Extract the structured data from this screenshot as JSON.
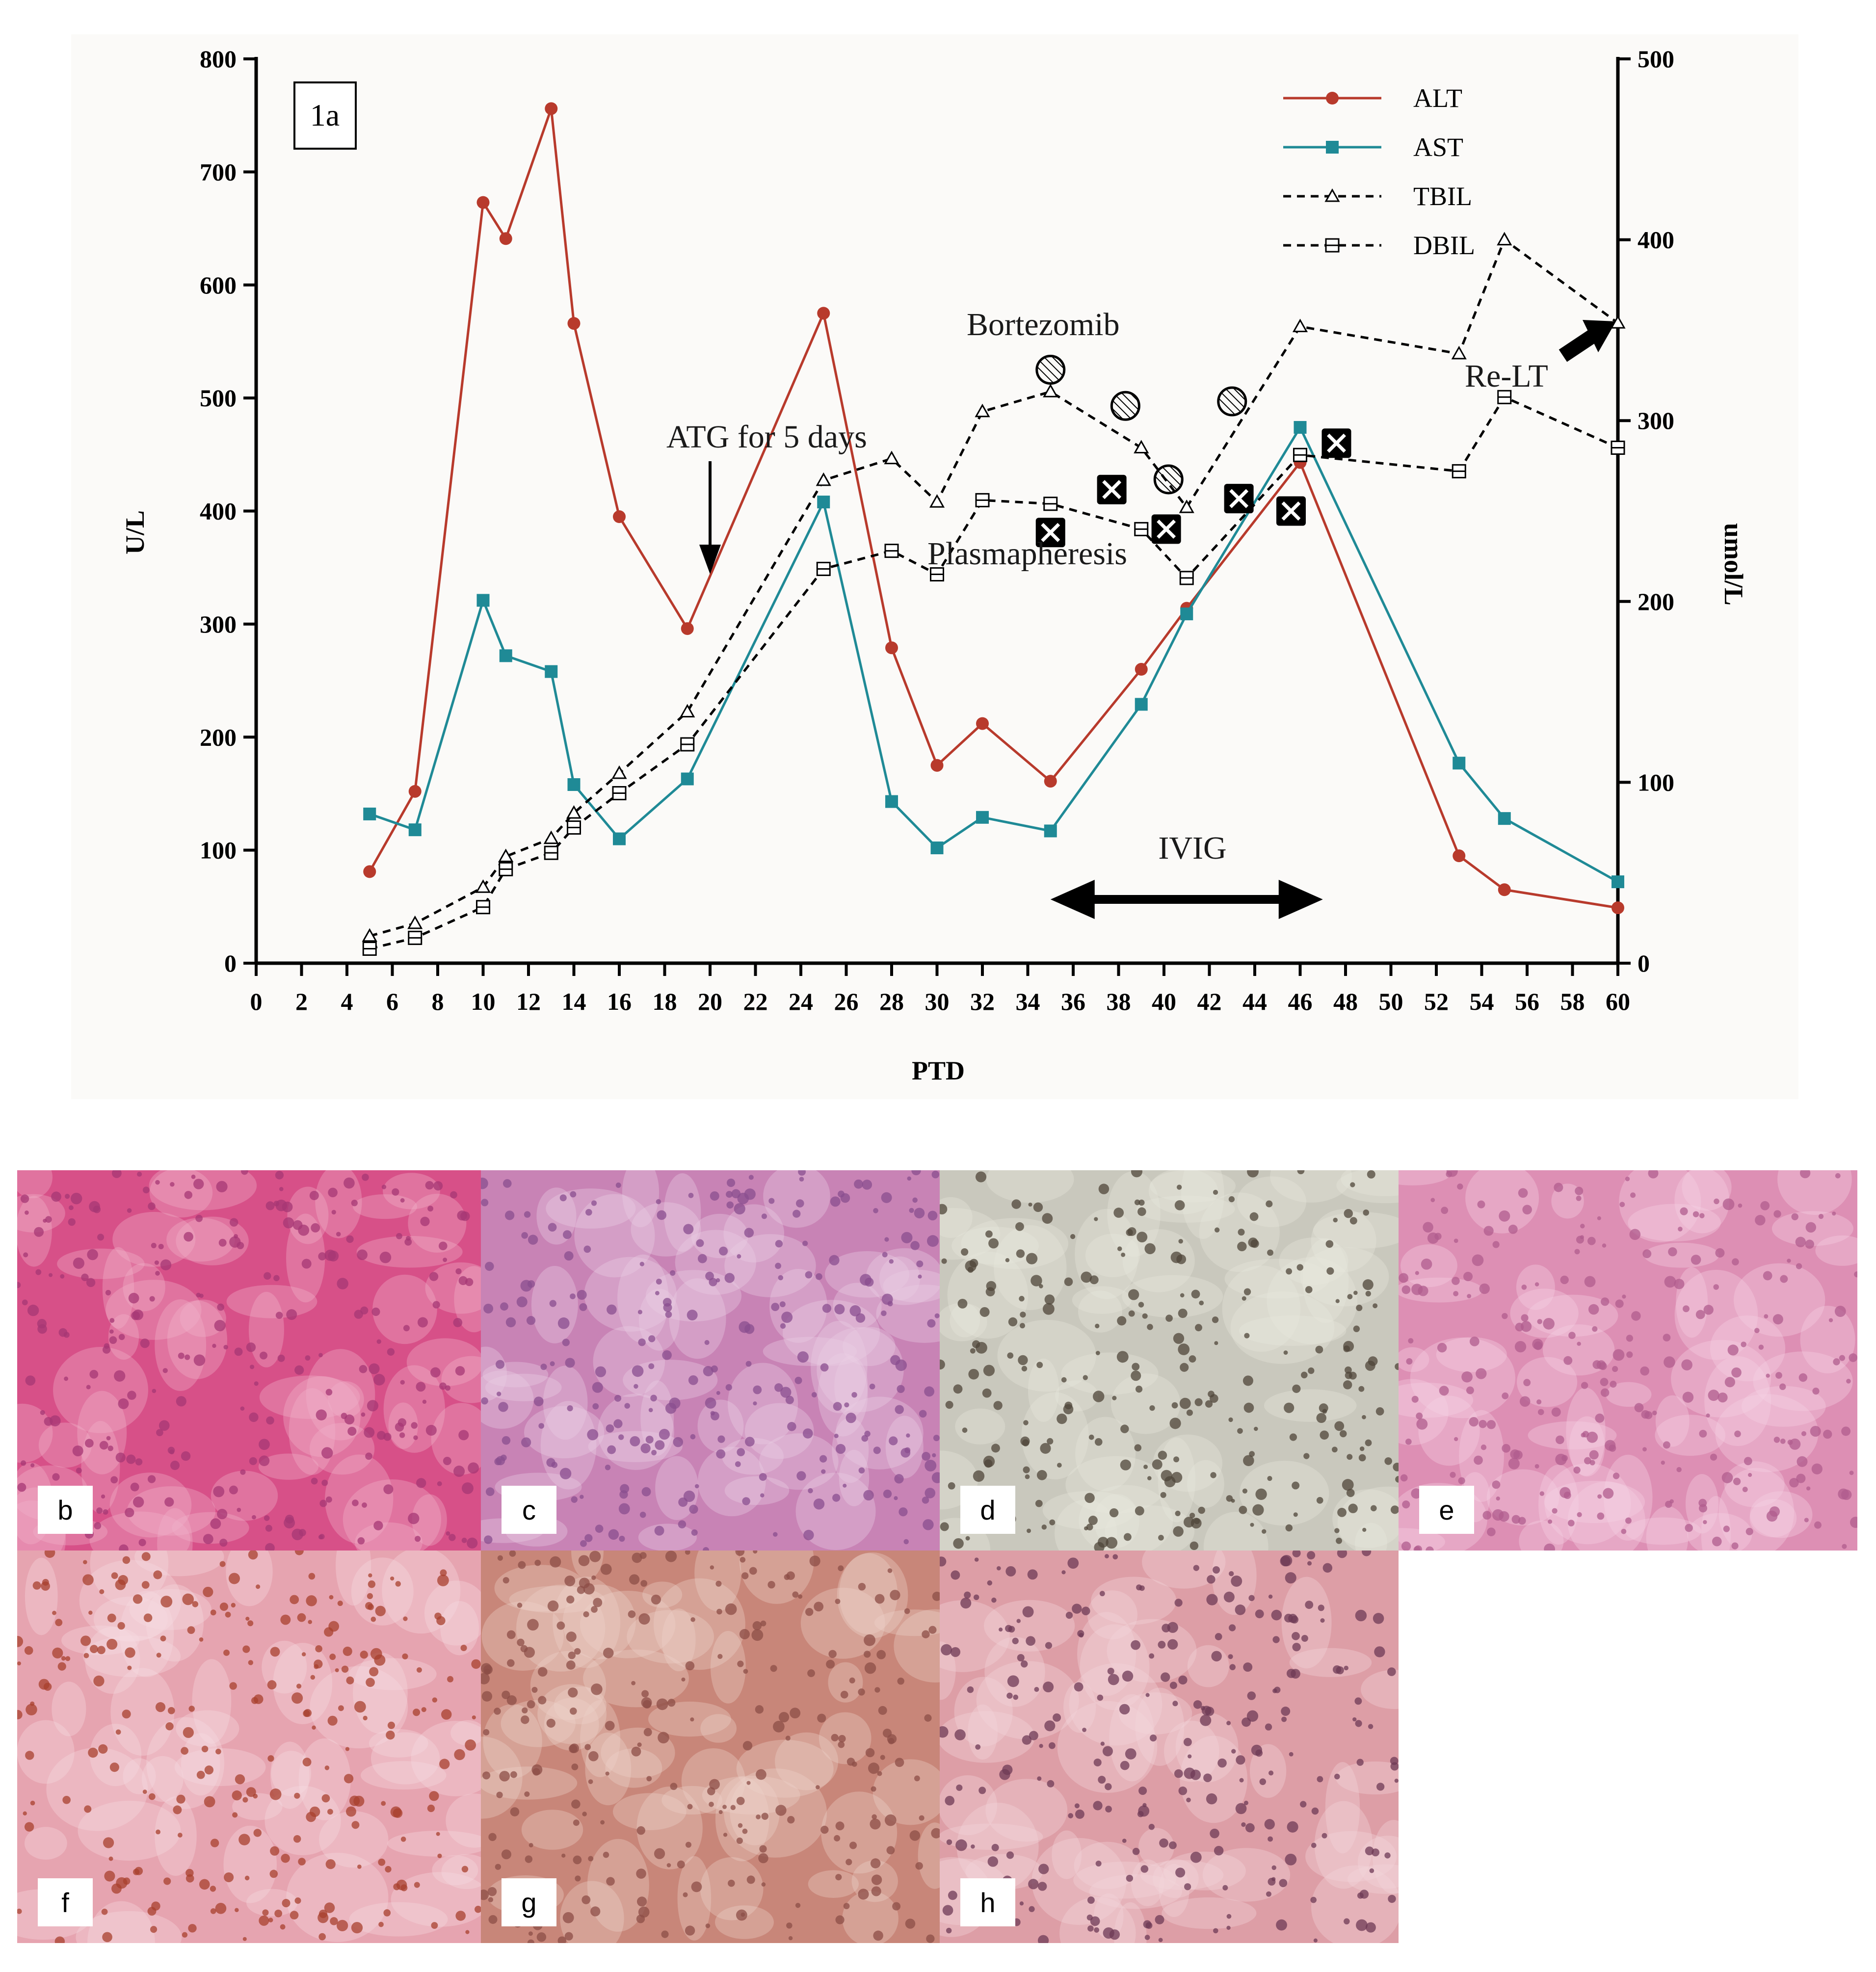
{
  "panel_label": "1a",
  "chart_data": {
    "type": "line",
    "xlabel": "PTD",
    "ylabel_left": "U/L",
    "ylabel_right": "umol/L",
    "xlim": [
      0,
      60
    ],
    "xticks": [
      0,
      2,
      4,
      6,
      8,
      10,
      12,
      14,
      16,
      18,
      20,
      22,
      24,
      26,
      28,
      30,
      32,
      34,
      36,
      38,
      40,
      42,
      44,
      46,
      48,
      50,
      52,
      54,
      56,
      58,
      60
    ],
    "ylim_left": [
      0,
      800
    ],
    "yticks_left": [
      0,
      100,
      200,
      300,
      400,
      500,
      600,
      700,
      800
    ],
    "ylim_right": [
      0,
      500
    ],
    "yticks_right": [
      0,
      100,
      200,
      300,
      400,
      500
    ],
    "legend_position": "top-right",
    "series": [
      {
        "name": "ALT",
        "axis": "left",
        "color": "#b83a2c",
        "marker": "circle",
        "style": "solid",
        "x": [
          5,
          7,
          10,
          11,
          13,
          14,
          16,
          19,
          25,
          28,
          30,
          32,
          35,
          39,
          41,
          46,
          53,
          55,
          60
        ],
        "y": [
          81,
          152,
          673,
          641,
          756,
          566,
          395,
          296,
          575,
          279,
          175,
          212,
          161,
          260,
          314,
          443,
          95,
          65,
          49
        ]
      },
      {
        "name": "AST",
        "axis": "left",
        "color": "#1f8a96",
        "marker": "square",
        "style": "solid",
        "x": [
          5,
          7,
          10,
          11,
          13,
          14,
          16,
          19,
          25,
          28,
          30,
          32,
          35,
          39,
          41,
          46,
          53,
          55,
          60
        ],
        "y": [
          132,
          118,
          321,
          272,
          258,
          158,
          110,
          163,
          408,
          143,
          102,
          129,
          117,
          229,
          309,
          474,
          177,
          128,
          72
        ]
      },
      {
        "name": "TBIL",
        "axis": "right",
        "color": "#000000",
        "marker": "triangle",
        "style": "dashed",
        "x": [
          5,
          7,
          10,
          11,
          13,
          14,
          16,
          19,
          25,
          28,
          30,
          32,
          35,
          39,
          41,
          46,
          53,
          55,
          60
        ],
        "y": [
          15,
          22,
          42,
          59,
          69,
          83,
          105,
          139,
          267,
          279,
          255,
          305,
          316,
          285,
          252,
          352,
          337,
          400,
          354
        ]
      },
      {
        "name": "DBIL",
        "axis": "right",
        "color": "#000000",
        "marker": "square-open",
        "style": "dashed",
        "x": [
          5,
          7,
          10,
          11,
          13,
          14,
          16,
          19,
          25,
          28,
          30,
          32,
          35,
          39,
          41,
          46,
          53,
          55,
          60
        ],
        "y": [
          8,
          14,
          31,
          52,
          61,
          75,
          94,
          121,
          218,
          228,
          215,
          256,
          254,
          240,
          213,
          281,
          272,
          313,
          285
        ]
      }
    ],
    "annotations": {
      "atg_text": "ATG for 5 days",
      "bortezomib_text": "Bortezomib",
      "plasmapheresis_text": "Plasmapheresis",
      "ivig_text": "IVIG",
      "relt_text": "Re-LT",
      "bortezomib_markers": [
        {
          "x": 35,
          "y": 525
        },
        {
          "x": 38.3,
          "y": 493
        },
        {
          "x": 40.2,
          "y": 428
        },
        {
          "x": 43,
          "y": 497
        }
      ],
      "plasmapheresis_markers": [
        {
          "x": 35,
          "y": 381
        },
        {
          "x": 37.7,
          "y": 419
        },
        {
          "x": 40.1,
          "y": 384
        },
        {
          "x": 43.3,
          "y": 411
        },
        {
          "x": 45.6,
          "y": 400
        },
        {
          "x": 47.6,
          "y": 460
        }
      ],
      "ivig_range": [
        35,
        47
      ]
    }
  },
  "photos": [
    {
      "label": "b",
      "colors": [
        "#d75088",
        "#f2b4cc",
        "#a63774"
      ]
    },
    {
      "label": "c",
      "colors": [
        "#c883b5",
        "#ecd0e4",
        "#8a4d8f"
      ]
    },
    {
      "label": "d",
      "colors": [
        "#c9c8bd",
        "#e9e8de",
        "#4f453a"
      ]
    },
    {
      "label": "e",
      "colors": [
        "#dd8fb4",
        "#f5d5e5",
        "#b05c8d"
      ]
    },
    {
      "label": "f",
      "colors": [
        "#e6a4b0",
        "#f6dde2",
        "#a8402e"
      ]
    },
    {
      "label": "g",
      "colors": [
        "#c88679",
        "#efd3cc",
        "#8c4e47"
      ]
    },
    {
      "label": "h",
      "colors": [
        "#dd9ea6",
        "#f3d8dc",
        "#6e3a55"
      ]
    }
  ]
}
